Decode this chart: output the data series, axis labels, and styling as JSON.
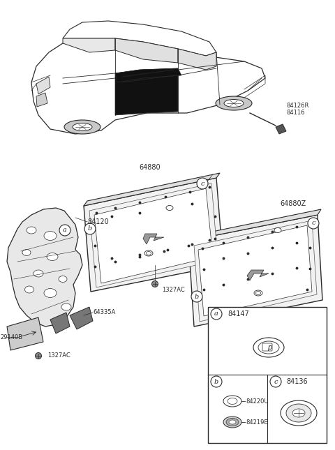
{
  "bg_color": "#ffffff",
  "line_color": "#2a2a2a",
  "parts": {
    "84126R": "84126R",
    "84116": "84116",
    "64880": "64880",
    "64880Z": "64880Z",
    "84120": "84120",
    "1327AC": "1327AC",
    "64335A": "64335A",
    "29140B": "29140B",
    "84147": "84147",
    "84136": "84136",
    "84220U": "84220U",
    "84219E": "84219E"
  }
}
